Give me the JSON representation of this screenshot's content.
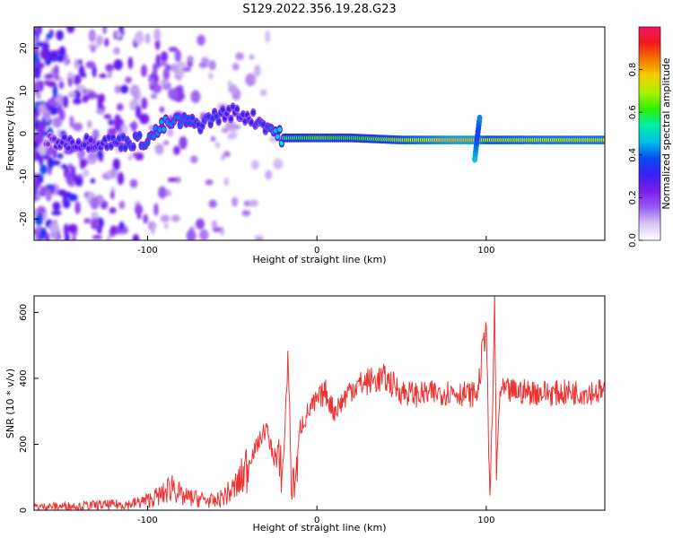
{
  "figure": {
    "title": "S129.2022.356.19.28.G23"
  },
  "colors": {
    "snr_line": "#ee3333",
    "colormap": [
      "#ffffff",
      "#d8c6f2",
      "#9a5cf0",
      "#7a1fe8",
      "#3a1ff0",
      "#0a4cf0",
      "#00bfe8",
      "#00f0a8",
      "#2cf000",
      "#a8f000",
      "#f0d000",
      "#f07a00",
      "#f01a1a",
      "#f0146a"
    ]
  },
  "chart_data": [
    {
      "type": "heatmap",
      "xlabel": "Height of straight line (km)",
      "ylabel": "Frequency (Hz)",
      "xlim": [
        -167,
        170
      ],
      "ylim": [
        -25,
        25
      ],
      "xticks": [
        -100,
        0,
        100
      ],
      "yticks": [
        -20,
        -10,
        0,
        10,
        20
      ],
      "grid": false,
      "colorbar": {
        "label": "Normalized spectral amplitude",
        "range": [
          0,
          1
        ],
        "ticks": [
          0.0,
          0.2,
          0.4,
          0.6,
          0.8
        ]
      },
      "description_ridge": {
        "x": [
          -160,
          -150,
          -130,
          -115,
          -100,
          -90,
          -80,
          -70,
          -60,
          -50,
          -40,
          -30,
          -20,
          0,
          20,
          50,
          80,
          95,
          100,
          130,
          170
        ],
        "y": [
          -2,
          -2,
          -2,
          -2,
          -1.5,
          2,
          3,
          2,
          4,
          5,
          4,
          2,
          -1,
          -1,
          -1,
          -1.5,
          -1.5,
          -1.5,
          -1.5,
          -1.5,
          -1.5
        ],
        "amplitude": [
          0.2,
          0.3,
          0.3,
          0.35,
          0.4,
          0.45,
          0.4,
          0.35,
          0.35,
          0.3,
          0.3,
          0.35,
          0.55,
          0.65,
          0.6,
          0.7,
          0.8,
          0.8,
          0.7,
          0.75,
          0.75
        ]
      }
    },
    {
      "type": "line",
      "xlabel": "Height of straight line (km)",
      "ylabel": "SNR (10 * v/v)",
      "xlim": [
        -167,
        170
      ],
      "ylim": [
        0,
        650
      ],
      "xticks": [
        -100,
        0,
        100
      ],
      "yticks": [
        0,
        200,
        400,
        600
      ],
      "grid": false,
      "series": [
        {
          "color": "#ee3333",
          "x": [
            -167,
            -150,
            -130,
            -110,
            -100,
            -90,
            -85,
            -80,
            -70,
            -60,
            -50,
            -45,
            -40,
            -35,
            -30,
            -25,
            -20,
            -17,
            -15,
            -12,
            -10,
            -5,
            0,
            5,
            10,
            15,
            20,
            25,
            30,
            40,
            50,
            60,
            70,
            80,
            90,
            95,
            100,
            102,
            104,
            105,
            106,
            108,
            110,
            120,
            140,
            160,
            170
          ],
          "y": [
            10,
            12,
            15,
            18,
            30,
            50,
            80,
            40,
            35,
            25,
            60,
            90,
            150,
            200,
            250,
            150,
            120,
            480,
            60,
            120,
            250,
            300,
            330,
            360,
            300,
            330,
            370,
            380,
            390,
            400,
            360,
            350,
            355,
            360,
            350,
            355,
            580,
            20,
            360,
            650,
            100,
            360,
            360,
            360,
            355,
            360,
            360
          ]
        }
      ]
    }
  ]
}
